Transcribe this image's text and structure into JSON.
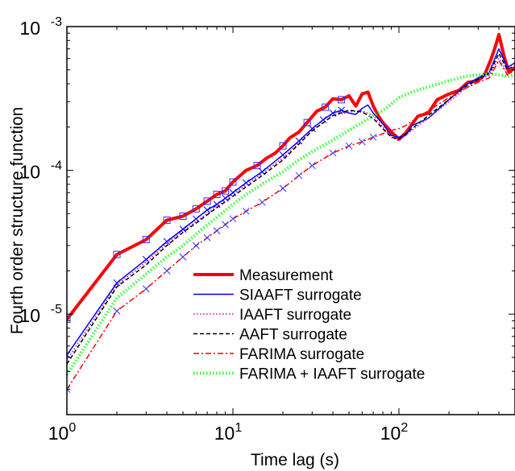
{
  "chart_data": {
    "type": "line",
    "title": "",
    "xlabel": "Time lag (s)",
    "ylabel": "Fourth order structure function",
    "xscale": "log",
    "yscale": "log",
    "xlim": [
      1,
      500
    ],
    "ylim": [
      2e-06,
      0.001
    ],
    "x_ticks": [
      {
        "value": 1,
        "base": "10",
        "exp": "0"
      },
      {
        "value": 10,
        "base": "10",
        "exp": "1"
      },
      {
        "value": 100,
        "base": "10",
        "exp": "2"
      }
    ],
    "y_ticks": [
      {
        "value": 1e-05,
        "base": "10",
        "exp": "-5"
      },
      {
        "value": 0.0001,
        "base": "10",
        "exp": "-4"
      },
      {
        "value": 0.001,
        "base": "10",
        "exp": "-3"
      }
    ],
    "grid": false,
    "legend_position": "bottom-right",
    "series": [
      {
        "name": "Measurement",
        "color": "#ff0000",
        "line": "solid",
        "width": 4,
        "marker": "square",
        "marker_color": "#3333ff",
        "x": [
          1,
          2,
          3,
          4,
          5,
          6,
          7,
          8,
          9,
          10,
          12,
          14,
          16,
          18,
          20,
          22,
          25,
          28,
          32,
          36,
          40,
          45,
          50,
          55,
          60,
          65,
          70,
          75,
          80,
          90,
          100,
          110,
          120,
          130,
          150,
          170,
          200,
          230,
          260,
          300,
          330,
          360,
          380,
          400,
          430,
          460,
          500
        ],
        "y": [
          9.2e-06,
          2.6e-05,
          3.3e-05,
          4.5e-05,
          4.8e-05,
          5.4e-05,
          6.1e-05,
          6.8e-05,
          7.2e-05,
          8.3e-05,
          0.0001,
          0.000108,
          0.000122,
          0.000132,
          0.000148,
          0.000168,
          0.000185,
          0.000215,
          0.000258,
          0.000275,
          0.000315,
          0.00031,
          0.00033,
          0.00028,
          0.00034,
          0.00035,
          0.00028,
          0.00024,
          0.000215,
          0.000185,
          0.000165,
          0.000182,
          0.00021,
          0.000238,
          0.00025,
          0.00031,
          0.00034,
          0.00036,
          0.00041,
          0.00042,
          0.00047,
          0.0006,
          0.00072,
          0.00088,
          0.00062,
          0.00048,
          0.00052
        ],
        "marker_x": [
          1,
          2,
          3,
          4,
          5,
          6,
          7,
          8,
          9,
          10,
          14,
          20,
          28,
          36,
          45
        ],
        "marker_y": [
          9.2e-06,
          2.6e-05,
          3.3e-05,
          4.5e-05,
          4.8e-05,
          5.4e-05,
          6.1e-05,
          6.8e-05,
          7.2e-05,
          8.3e-05,
          0.000108,
          0.000148,
          0.000215,
          0.000275,
          0.00031
        ]
      },
      {
        "name": "SIAAFT surrogate",
        "color": "#0000ff",
        "line": "solid",
        "width": 1.5,
        "marker": "x",
        "marker_color": "#0000ff",
        "x": [
          1,
          2,
          3,
          4,
          5,
          6,
          7,
          8,
          9,
          10,
          12,
          15,
          20,
          25,
          30,
          35,
          40,
          45,
          50,
          55,
          60,
          65,
          70,
          80,
          90,
          100,
          110,
          120,
          150,
          200,
          250,
          300,
          350,
          400,
          450,
          500
        ],
        "y": [
          5.2e-06,
          1.65e-05,
          2.4e-05,
          3.2e-05,
          3.9e-05,
          4.6e-05,
          5.3e-05,
          5.8e-05,
          6.4e-05,
          7e-05,
          8.2e-05,
          9.8e-05,
          0.000128,
          0.00016,
          0.000195,
          0.000225,
          0.00025,
          0.000262,
          0.00025,
          0.000245,
          0.00027,
          0.000285,
          0.00025,
          0.00021,
          0.000175,
          0.00017,
          0.000175,
          0.000205,
          0.00023,
          0.00031,
          0.00039,
          0.00044,
          0.00048,
          0.0007,
          0.00052,
          0.00056
        ],
        "marker_x": [
          1,
          2,
          3,
          4,
          5,
          6,
          7,
          8,
          9,
          10,
          12,
          15,
          20,
          25,
          30,
          35,
          40,
          45
        ],
        "marker_y": [
          5.2e-06,
          1.65e-05,
          2.4e-05,
          3.2e-05,
          3.9e-05,
          4.6e-05,
          5.3e-05,
          5.8e-05,
          6.4e-05,
          7e-05,
          8.2e-05,
          9.8e-05,
          0.000128,
          0.00016,
          0.000195,
          0.000225,
          0.00025,
          0.000262
        ]
      },
      {
        "name": "IAAFT surrogate",
        "color": "#cc00cc",
        "line": "dotted",
        "width": 1.5,
        "marker": "none",
        "x": [
          1,
          2,
          3,
          4,
          5,
          6,
          8,
          10,
          15,
          20,
          30,
          40,
          50,
          60,
          70,
          80,
          90,
          100,
          120,
          150,
          200,
          250,
          300,
          350,
          400,
          450,
          500
        ],
        "y": [
          4.8e-06,
          1.6e-05,
          2.3e-05,
          3.1e-05,
          3.8e-05,
          4.4e-05,
          5.6e-05,
          6.8e-05,
          9.5e-05,
          0.000122,
          0.00019,
          0.00024,
          0.000255,
          0.00026,
          0.00024,
          0.0002,
          0.00017,
          0.00016,
          0.00019,
          0.00023,
          0.0003,
          0.00037,
          0.00042,
          0.00046,
          0.0006,
          0.00048,
          0.00052
        ]
      },
      {
        "name": "AAFT surrogate",
        "color": "#000000",
        "line": "dashed",
        "width": 1.5,
        "marker": "none",
        "x": [
          1,
          2,
          3,
          4,
          5,
          6,
          8,
          10,
          15,
          20,
          30,
          40,
          50,
          60,
          70,
          80,
          90,
          100,
          120,
          150,
          200,
          250,
          300,
          350,
          400,
          450,
          500
        ],
        "y": [
          4.5e-06,
          1.55e-05,
          2.2e-05,
          3e-05,
          3.7e-05,
          4.3e-05,
          5.5e-05,
          6.6e-05,
          9.2e-05,
          0.000118,
          0.000188,
          0.00024,
          0.000262,
          0.000255,
          0.00023,
          0.000195,
          0.00017,
          0.000165,
          0.000195,
          0.00024,
          0.00031,
          0.00038,
          0.00043,
          0.00047,
          0.00065,
          0.0005,
          0.00054
        ]
      },
      {
        "name": "FARIMA surrogate",
        "color": "#ff0000",
        "line": "dashdot",
        "width": 1.5,
        "marker": "x",
        "marker_color": "#3333ff",
        "x": [
          1,
          2,
          3,
          4,
          5,
          6,
          7,
          8,
          9,
          10,
          12,
          15,
          20,
          25,
          30,
          40,
          50,
          60,
          70,
          80,
          90,
          100,
          110,
          120,
          150,
          200,
          250,
          300,
          350,
          400,
          450,
          500
        ],
        "y": [
          3e-06,
          1.05e-05,
          1.5e-05,
          2e-05,
          2.5e-05,
          3e-05,
          3.4e-05,
          3.8e-05,
          4.2e-05,
          4.6e-05,
          5.2e-05,
          6e-05,
          7.5e-05,
          9.2e-05,
          0.000108,
          0.000132,
          0.000148,
          0.000158,
          0.00017,
          0.00018,
          0.00019,
          0.000195,
          0.000205,
          0.00022,
          0.00026,
          0.00032,
          0.00037,
          0.00041,
          0.00044,
          0.00058,
          0.00046,
          0.0005
        ],
        "marker_x": [
          1,
          2,
          3,
          4,
          5,
          6,
          7,
          8,
          9,
          10,
          12,
          15,
          20,
          25,
          30,
          40,
          50,
          60,
          70
        ],
        "marker_y": [
          3e-06,
          1.05e-05,
          1.5e-05,
          2e-05,
          2.5e-05,
          3e-05,
          3.4e-05,
          3.8e-05,
          4.2e-05,
          4.6e-05,
          5.2e-05,
          6e-05,
          7.5e-05,
          9.2e-05,
          0.000108,
          0.000132,
          0.000148,
          0.000158,
          0.00017
        ]
      },
      {
        "name": "FARIMA + IAAFT surrogate",
        "color": "#33ff33",
        "line": "dotted",
        "width": 4,
        "marker": "none",
        "x": [
          1,
          2,
          3,
          4,
          5,
          6,
          8,
          10,
          12,
          15,
          20,
          25,
          30,
          40,
          50,
          60,
          70,
          80,
          90,
          100,
          120,
          150,
          200,
          250,
          300,
          350,
          400,
          450,
          500
        ],
        "y": [
          3.8e-06,
          1.3e-05,
          1.9e-05,
          2.5e-05,
          3e-05,
          3.6e-05,
          4.7e-05,
          5.8e-05,
          6.8e-05,
          8e-05,
          9.8e-05,
          0.000118,
          0.000135,
          0.000162,
          0.00019,
          0.000215,
          0.00024,
          0.00026,
          0.00029,
          0.00032,
          0.00035,
          0.00038,
          0.00042,
          0.00045,
          0.00046,
          0.00047,
          0.00046,
          0.00045,
          0.00046
        ]
      }
    ]
  }
}
